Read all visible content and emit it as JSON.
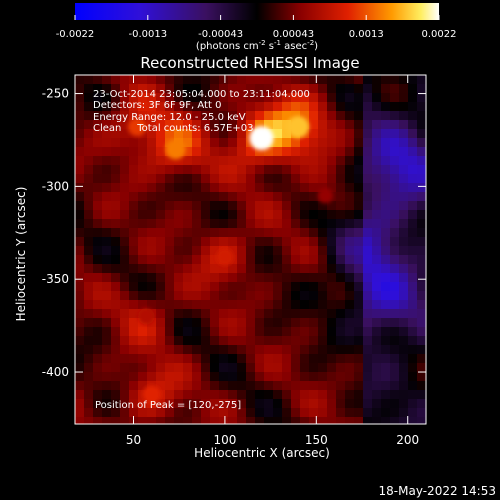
{
  "colorbar": {
    "tick_labels": [
      "-0.0022",
      "-0.0013",
      "-0.00043",
      "0.00043",
      "0.0013",
      "0.0022"
    ],
    "units_prefix": "(photons cm",
    "units_exp1": "-2",
    "units_mid": " s",
    "units_exp2": "-1",
    "units_mid2": " asec",
    "units_exp3": "-2",
    "units_suffix": ")",
    "range": [
      -0.0022,
      0.0022
    ]
  },
  "title": "Reconstructed RHESSI Image",
  "annotations": {
    "time": "23-Oct-2014 23:05:04.000 to 23:11:04.000",
    "detectors": "Detectors: 3F 6F 9F, Att 0",
    "energy": "Energy Range: 12.0 - 25.0 keV",
    "clean": "Clean     Total counts: 6.57E+03",
    "peak": "Position of Peak = [120,-275]"
  },
  "footer_date": "18-May-2022 14:53",
  "chart_data": {
    "type": "heatmap",
    "title": "Reconstructed RHESSI Image",
    "xlabel": "Heliocentric X (arcsec)",
    "ylabel": "Heliocentric Y (arcsec)",
    "xlim": [
      18,
      210
    ],
    "ylim": [
      -428,
      -240
    ],
    "x_ticks": [
      50,
      100,
      150,
      200
    ],
    "y_ticks": [
      -250,
      -300,
      -350,
      -400
    ],
    "x_tick_labels": [
      "50",
      "100",
      "150",
      "200"
    ],
    "y_tick_labels": [
      "-250",
      "-300",
      "-350",
      "-400"
    ],
    "colormap": "red temperature (blue-purple negative, red-yellow-white positive)",
    "peak": [
      120,
      -275
    ],
    "bright_sources": [
      {
        "x": 120,
        "y": -274,
        "value": 0.0022
      },
      {
        "x": 140,
        "y": -268,
        "value": 0.0018
      },
      {
        "x": 73,
        "y": -280,
        "value": 0.0015
      },
      {
        "x": 52,
        "y": -268,
        "value": 0.0012
      },
      {
        "x": 100,
        "y": -338,
        "value": 0.001
      },
      {
        "x": 60,
        "y": -412,
        "value": 0.0011
      },
      {
        "x": 57,
        "y": -370,
        "value": 0.0008
      },
      {
        "x": 155,
        "y": -305,
        "value": 0.0006
      }
    ],
    "negative_regions": [
      {
        "x": 195,
        "y": -290,
        "value": -0.0009
      },
      {
        "x": 185,
        "y": -360,
        "value": -0.0008
      },
      {
        "x": 175,
        "y": -330,
        "value": -0.0006
      }
    ]
  }
}
